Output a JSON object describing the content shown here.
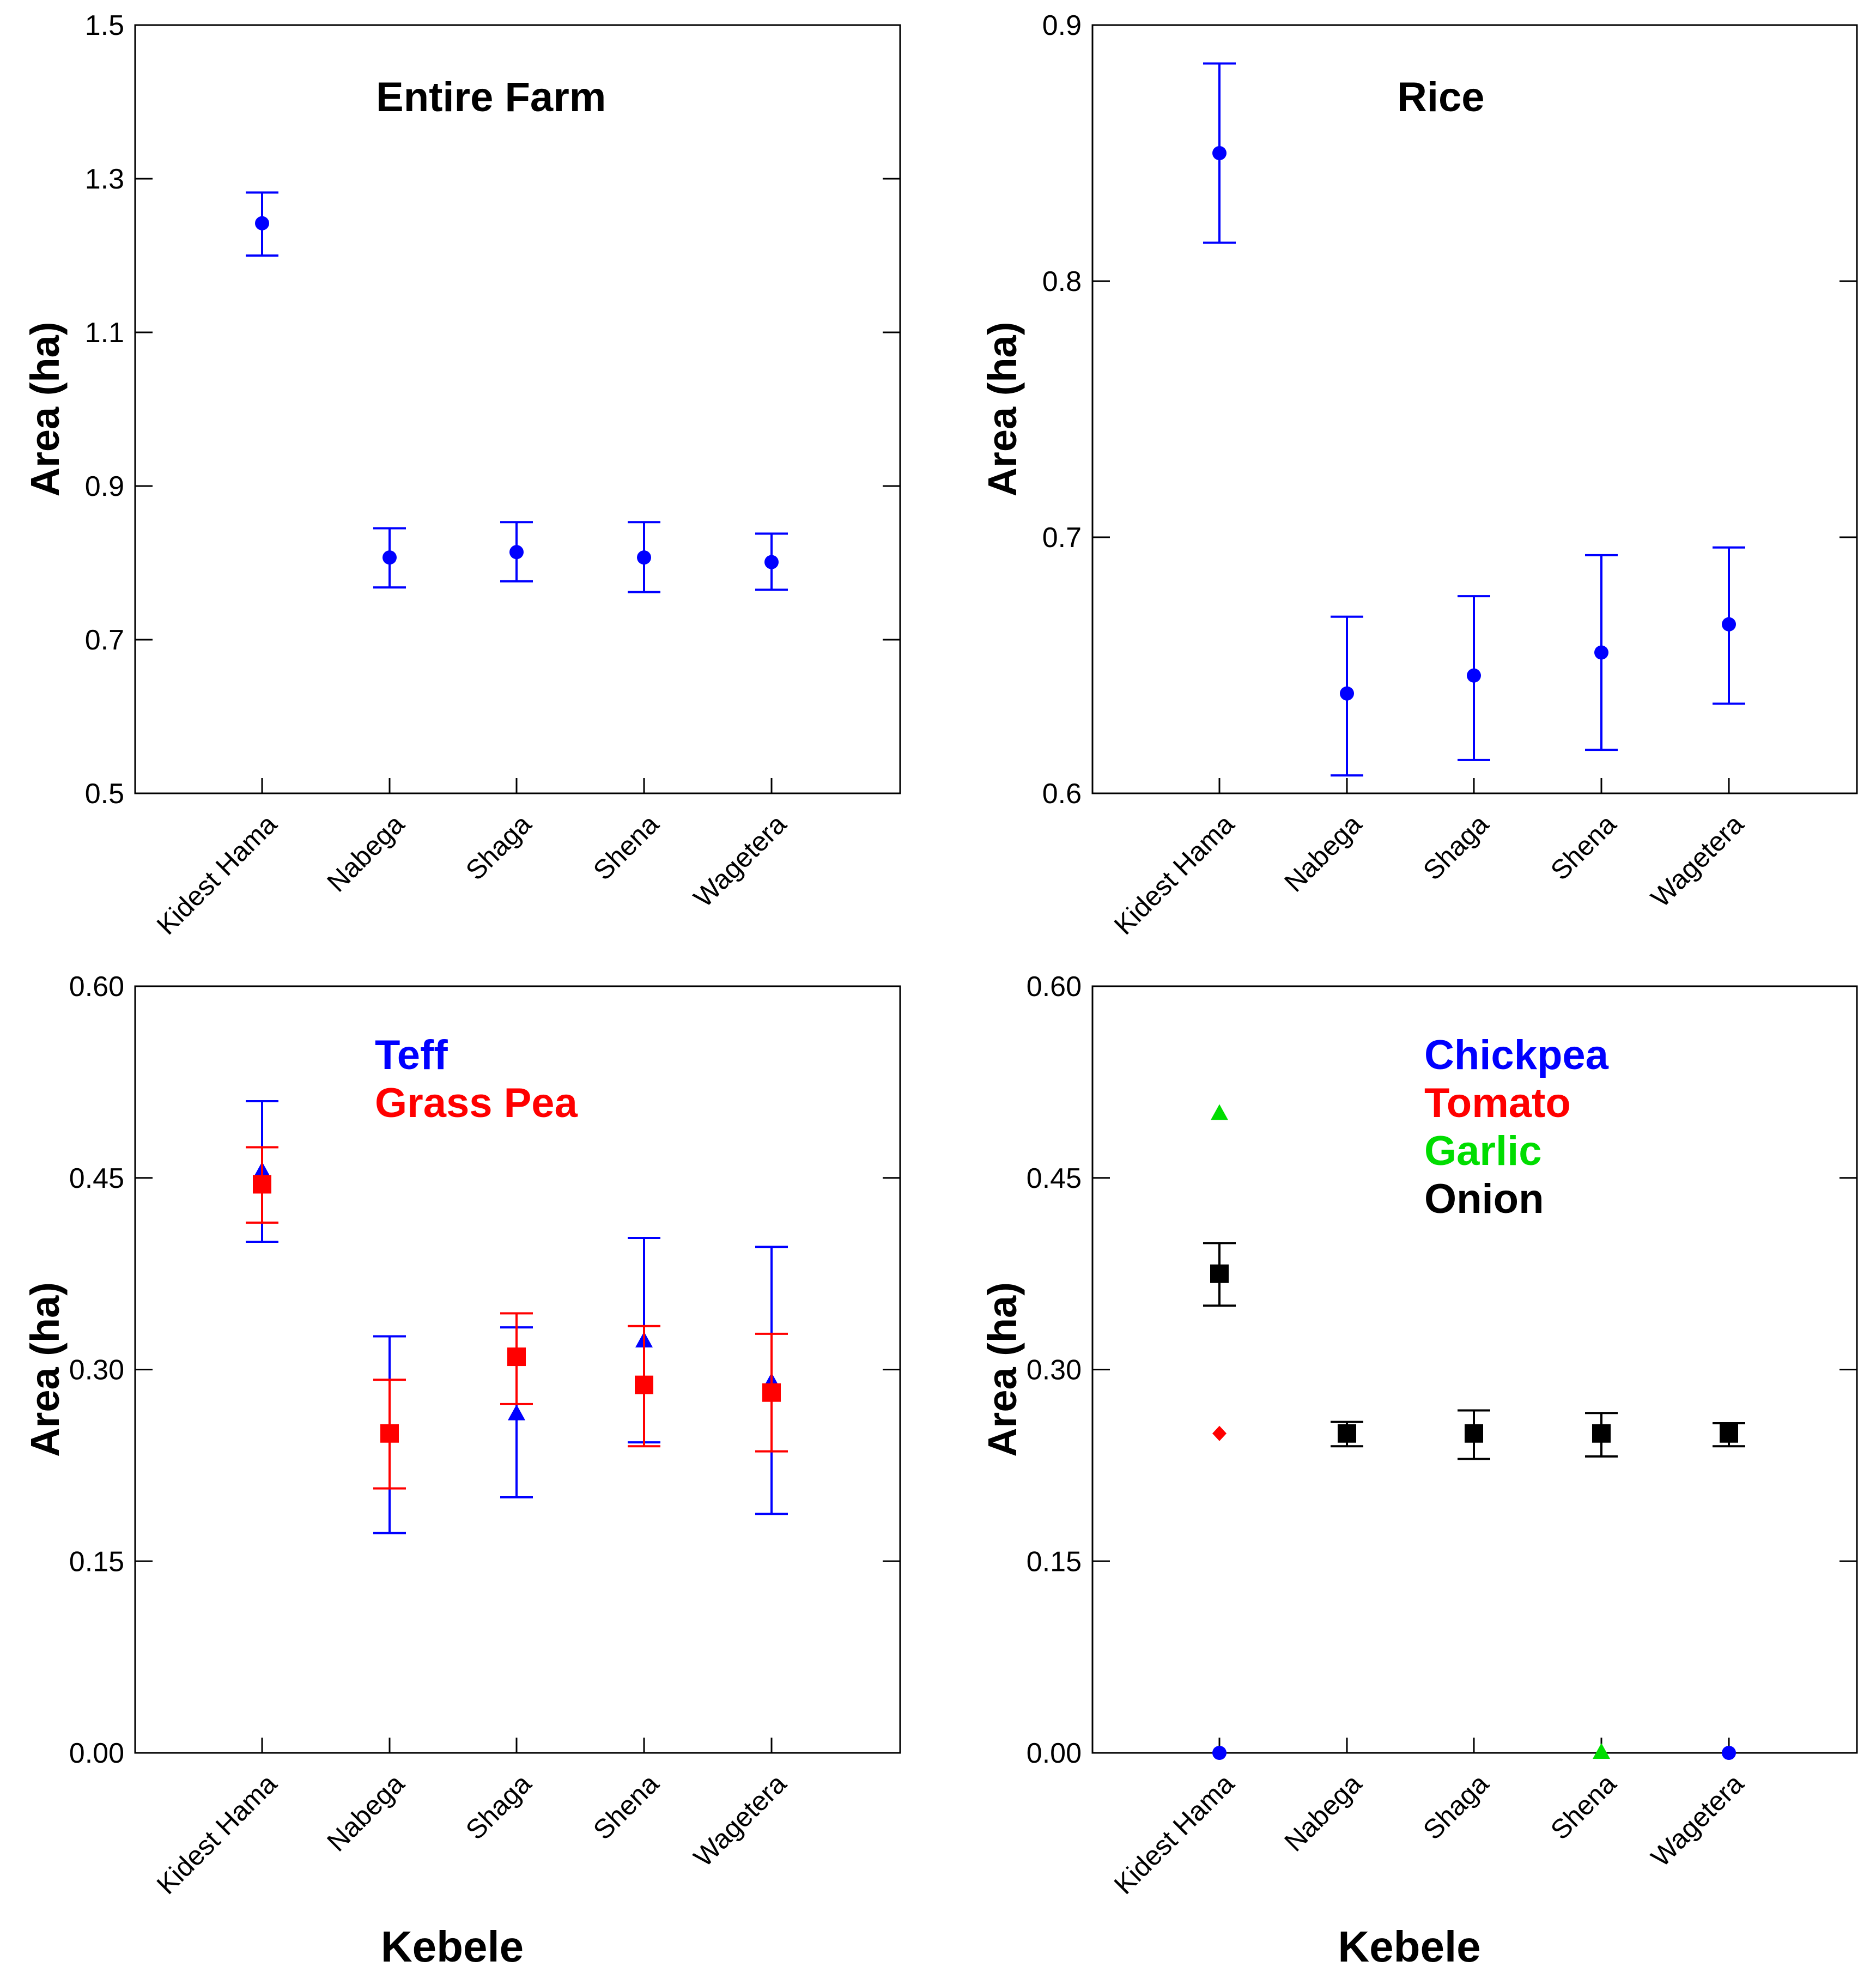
{
  "chart_data": [
    {
      "type": "scatter",
      "title": "Entire Farm",
      "ylabel": "Area (ha)",
      "xlabel": "",
      "ylim": [
        0.5,
        1.5
      ],
      "yticks": [
        "0.5",
        "0.7",
        "0.9",
        "1.1",
        "1.3",
        "1.5"
      ],
      "categories": [
        "Kidest Hama",
        "Nabega",
        "Shaga",
        "Shena",
        "Wagetera"
      ],
      "legend": [],
      "series": [
        {
          "name": "Entire Farm",
          "color": "#0000ff",
          "marker": "circle",
          "values": [
            1.242,
            0.807,
            0.814,
            0.807,
            0.801
          ],
          "lower": [
            1.2,
            0.768,
            0.776,
            0.762,
            0.765
          ],
          "upper": [
            1.282,
            0.845,
            0.853,
            0.853,
            0.838
          ]
        }
      ]
    },
    {
      "type": "scatter",
      "title": "Rice",
      "ylabel": "Area (ha)",
      "xlabel": "",
      "ylim": [
        0.6,
        0.9
      ],
      "yticks": [
        "0.6",
        "0.7",
        "0.8",
        "0.9"
      ],
      "categories": [
        "Kidest Hama",
        "Nabega",
        "Shaga",
        "Shena",
        "Wagetera"
      ],
      "legend": [],
      "series": [
        {
          "name": "Rice",
          "color": "#0000ff",
          "marker": "circle",
          "values": [
            0.85,
            0.639,
            0.646,
            0.655,
            0.666
          ],
          "lower": [
            0.815,
            0.607,
            0.613,
            0.617,
            0.635
          ],
          "upper": [
            0.885,
            0.669,
            0.677,
            0.693,
            0.696
          ]
        }
      ]
    },
    {
      "type": "scatter",
      "title": "",
      "ylabel": "Area (ha)",
      "xlabel": "Kebele",
      "ylim": [
        0.0,
        0.6
      ],
      "yticks": [
        "0.00",
        "0.15",
        "0.30",
        "0.45",
        "0.60"
      ],
      "categories": [
        "Kidest Hama",
        "Nabega",
        "Shaga",
        "Shena",
        "Wagetera"
      ],
      "legend": [
        {
          "label": "Teff",
          "color": "#0000ff"
        },
        {
          "label": "Grass Pea",
          "color": "#ff0000"
        }
      ],
      "series": [
        {
          "name": "Teff",
          "color": "#0000ff",
          "marker": "triangle",
          "values": [
            0.455,
            null,
            0.265,
            0.322,
            0.29
          ],
          "lower": [
            0.4,
            0.172,
            0.2,
            0.243,
            0.187
          ],
          "upper": [
            0.51,
            0.326,
            0.333,
            0.403,
            0.396
          ]
        },
        {
          "name": "Grass Pea",
          "color": "#ff0000",
          "marker": "square",
          "values": [
            0.445,
            0.25,
            0.31,
            0.288,
            0.282
          ],
          "lower": [
            0.415,
            0.207,
            0.273,
            0.24,
            0.236
          ],
          "upper": [
            0.474,
            0.292,
            0.344,
            0.334,
            0.328
          ]
        }
      ]
    },
    {
      "type": "scatter",
      "title": "",
      "ylabel": "Area (ha)",
      "xlabel": "Kebele",
      "ylim": [
        0.0,
        0.6
      ],
      "yticks": [
        "0.00",
        "0.15",
        "0.30",
        "0.45",
        "0.60"
      ],
      "categories": [
        "Kidest Hama",
        "Nabega",
        "Shaga",
        "Shena",
        "Wagetera"
      ],
      "legend": [
        {
          "label": "Chickpea",
          "color": "#0000ff"
        },
        {
          "label": "Tomato",
          "color": "#ff0000"
        },
        {
          "label": "Garlic",
          "color": "#00dd00"
        },
        {
          "label": "Onion",
          "color": "#000000"
        }
      ],
      "series": [
        {
          "name": "Chickpea",
          "color": "#0000ff",
          "marker": "circle",
          "values": [
            0.0,
            null,
            null,
            null,
            0.0
          ],
          "lower": [],
          "upper": []
        },
        {
          "name": "Tomato",
          "color": "#ff0000",
          "marker": "diamond",
          "values": [
            0.25,
            null,
            null,
            null,
            null
          ],
          "lower": [],
          "upper": []
        },
        {
          "name": "Garlic",
          "color": "#00dd00",
          "marker": "triangle",
          "values": [
            0.5,
            null,
            null,
            0.0,
            0.25
          ],
          "lower": [],
          "upper": []
        },
        {
          "name": "Onion",
          "color": "#000000",
          "marker": "square",
          "values": [
            0.375,
            0.25,
            0.25,
            0.25,
            0.25
          ],
          "lower": [
            0.35,
            0.24,
            0.23,
            0.232,
            0.24
          ],
          "upper": [
            0.399,
            0.259,
            0.268,
            0.266,
            0.258
          ]
        }
      ]
    }
  ]
}
